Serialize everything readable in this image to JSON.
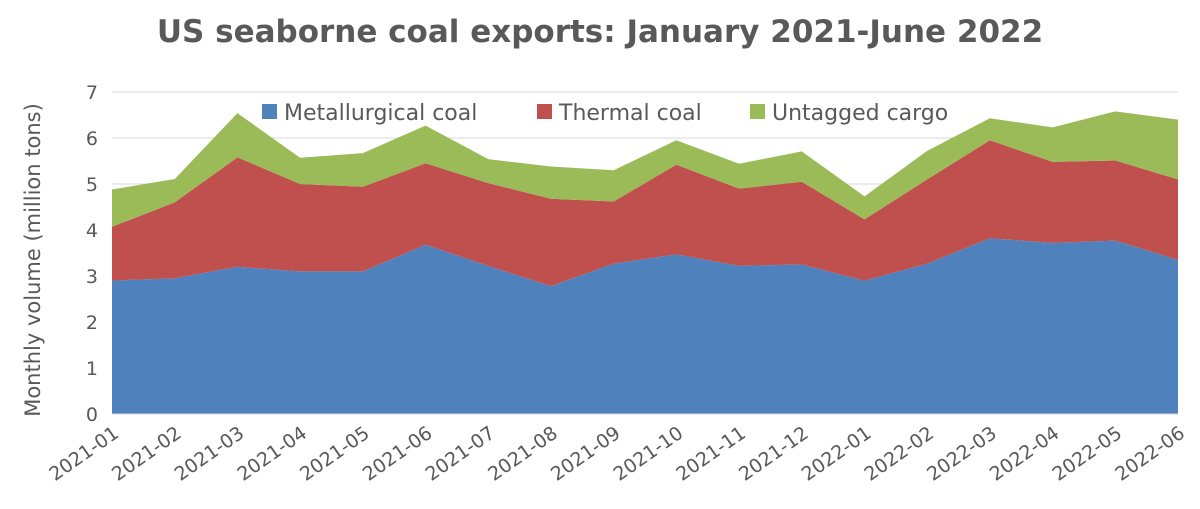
{
  "chart_data": {
    "type": "area",
    "stacked": true,
    "title": "US seaborne coal exports: January 2021-June 2022",
    "ylabel": "Monthly volume (million tons)",
    "xlabel": "",
    "ylim": [
      0,
      7
    ],
    "yticks": [
      0,
      1,
      2,
      3,
      4,
      5,
      6,
      7
    ],
    "grid": true,
    "legend_position": "top",
    "categories": [
      "2021-01",
      "2021-02",
      "2021-03",
      "2021-04",
      "2021-05",
      "2021-06",
      "2021-07",
      "2021-08",
      "2021-09",
      "2021-10",
      "2021-11",
      "2021-12",
      "2022-01",
      "2022-02",
      "2022-03",
      "2022-04",
      "2022-05",
      "2022-06"
    ],
    "series": [
      {
        "name": "Metallurgical coal",
        "color": "#4F81BD",
        "values": [
          2.9,
          2.95,
          3.2,
          3.1,
          3.1,
          3.68,
          3.22,
          2.78,
          3.27,
          3.47,
          3.22,
          3.25,
          2.9,
          3.27,
          3.82,
          3.72,
          3.77,
          3.35
        ]
      },
      {
        "name": "Thermal coal",
        "color": "#C0504D",
        "values": [
          1.17,
          1.65,
          2.38,
          1.9,
          1.84,
          1.77,
          1.8,
          1.9,
          1.35,
          1.95,
          1.68,
          1.8,
          1.33,
          1.83,
          2.13,
          1.76,
          1.74,
          1.75
        ]
      },
      {
        "name": "Untagged cargo",
        "color": "#9BBB59",
        "values": [
          0.81,
          0.51,
          0.96,
          0.57,
          0.73,
          0.82,
          0.52,
          0.7,
          0.68,
          0.53,
          0.54,
          0.66,
          0.5,
          0.62,
          0.48,
          0.75,
          1.07,
          1.3
        ]
      }
    ]
  }
}
